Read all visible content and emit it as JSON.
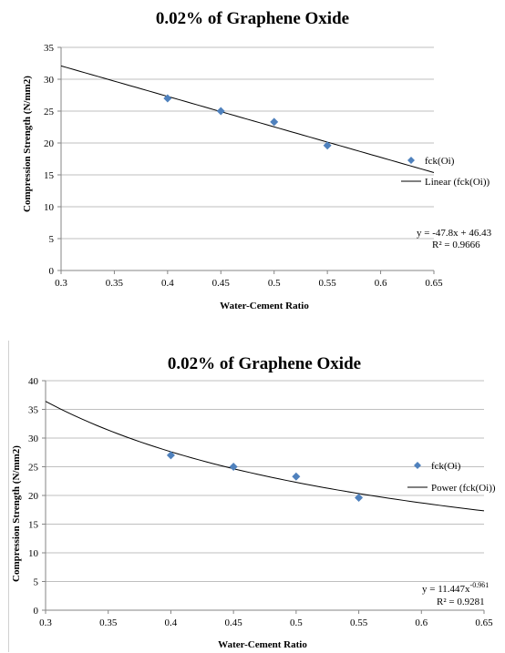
{
  "chart_data": [
    {
      "type": "scatter",
      "title": "0.02% of Graphene Oxide",
      "xlabel": "Water-Cement Ratio",
      "ylabel": "Compression Strength (N/mm2)",
      "xlim": [
        0.3,
        0.65
      ],
      "ylim": [
        0,
        35
      ],
      "xticks": [
        0.3,
        0.35,
        0.4,
        0.45,
        0.5,
        0.55,
        0.6,
        0.65
      ],
      "yticks": [
        0,
        5,
        10,
        15,
        20,
        25,
        30,
        35
      ],
      "xtick_labels": [
        "0.3",
        "0.35",
        "0.4",
        "0.45",
        "0.5",
        "0.55",
        "0.6",
        "0.65"
      ],
      "ytick_labels": [
        "0",
        "5",
        "10",
        "15",
        "20",
        "25",
        "30",
        "35"
      ],
      "grid": "horizontal",
      "legend_position": "right",
      "series": [
        {
          "name": "fck(Oi)",
          "color": "#4f81bd",
          "marker": "diamond",
          "x": [
            0.4,
            0.45,
            0.5,
            0.55
          ],
          "y": [
            27,
            25,
            23.3,
            19.6
          ]
        }
      ],
      "trendline": {
        "name": "Linear (fck(Oi))",
        "kind": "linear",
        "slope": -47.8,
        "intercept": 46.43,
        "x_range": [
          0.3,
          0.65
        ]
      },
      "equation": {
        "main": "y = -47.8x + 46.43",
        "r2": "R² = 0.9666"
      }
    },
    {
      "type": "scatter",
      "title": "0.02% of Graphene Oxide",
      "xlabel": "Water-Cement Ratio",
      "ylabel": "Compression Strength (N/mm2)",
      "xlim": [
        0.3,
        0.65
      ],
      "ylim": [
        0,
        40
      ],
      "xticks": [
        0.3,
        0.35,
        0.4,
        0.45,
        0.5,
        0.55,
        0.6,
        0.65
      ],
      "yticks": [
        0,
        5,
        10,
        15,
        20,
        25,
        30,
        35,
        40
      ],
      "xtick_labels": [
        "0.3",
        "0.35",
        "0.4",
        "0.45",
        "0.5",
        "0.55",
        "0.6",
        "0.65"
      ],
      "ytick_labels": [
        "0",
        "5",
        "10",
        "15",
        "20",
        "25",
        "30",
        "35",
        "40"
      ],
      "grid": "horizontal",
      "legend_position": "right",
      "series": [
        {
          "name": "fck(Oi)",
          "color": "#4f81bd",
          "marker": "diamond",
          "x": [
            0.4,
            0.45,
            0.5,
            0.55
          ],
          "y": [
            27,
            25,
            23.3,
            19.6
          ]
        }
      ],
      "trendline": {
        "name": "Power (fck(Oi))",
        "kind": "power",
        "coefficient": 11.447,
        "exponent": -0.961,
        "x_range": [
          0.3,
          0.65
        ]
      },
      "equation": {
        "main": "y = 11.447x",
        "superscript": "-0.961",
        "r2": "R² = 0.9281"
      }
    }
  ]
}
